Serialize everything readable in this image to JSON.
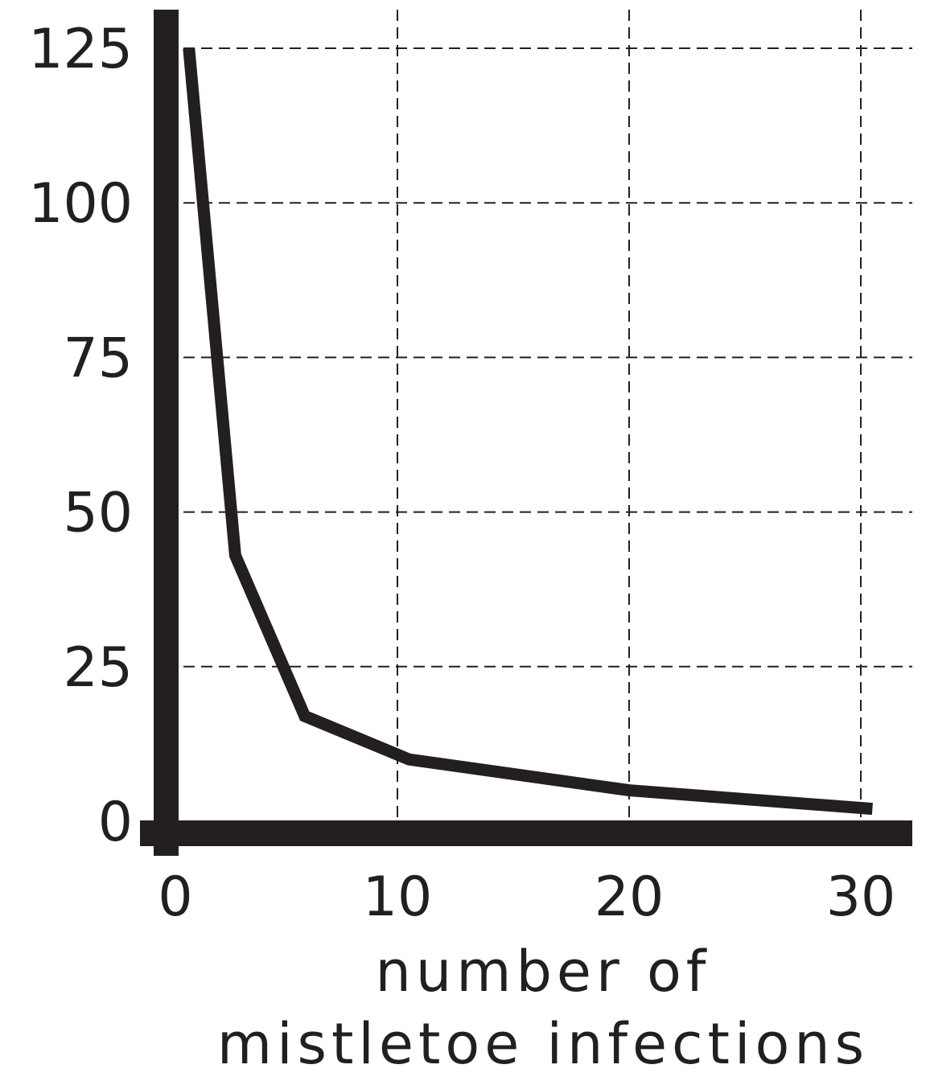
{
  "chart_data": {
    "type": "line",
    "title": "",
    "xlabel_lines": [
      "number of",
      "mistletoe infections"
    ],
    "ylabel": "",
    "xlim": [
      0,
      31
    ],
    "ylim": [
      0,
      128
    ],
    "x_ticks": [
      0,
      10,
      20,
      30
    ],
    "y_ticks": [
      0,
      25,
      50,
      75,
      100,
      125
    ],
    "grid": true,
    "grid_style": "dashed",
    "legend": "none",
    "series": [
      {
        "x": [
          1,
          3,
          6,
          10.5,
          20,
          30.5
        ],
        "y": [
          125,
          43,
          17,
          10,
          5,
          2
        ]
      }
    ],
    "colors": {
      "line": "#231f20",
      "axis": "#231f20",
      "grid": "#231f20",
      "background": "#ffffff"
    }
  }
}
